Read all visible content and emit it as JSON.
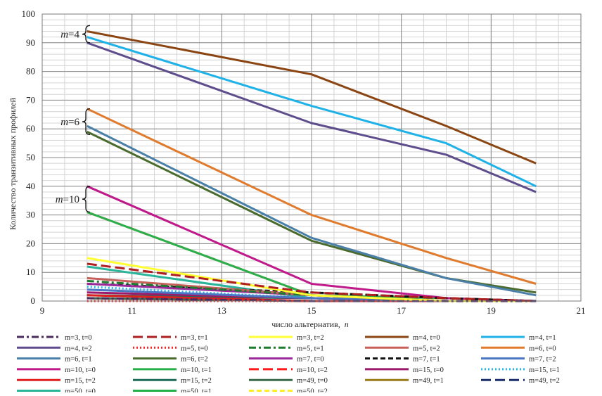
{
  "chart_data": {
    "type": "line",
    "title": "",
    "xlabel": "число альтернатив,",
    "xlabel_var": "n",
    "ylabel": "Количество транзитивных профилей",
    "xlim": [
      9,
      21
    ],
    "ylim": [
      0,
      100
    ],
    "x_ticks": [
      9,
      11,
      13,
      15,
      17,
      19,
      21
    ],
    "y_ticks": [
      0,
      10,
      20,
      30,
      40,
      50,
      60,
      70,
      80,
      90,
      100
    ],
    "grid": true,
    "legend_position": "bottom",
    "x": [
      10,
      15,
      18,
      20
    ],
    "annotations": [
      {
        "text_var": "m",
        "text_value": "=4",
        "y_range": [
          90,
          96
        ]
      },
      {
        "text_var": "m",
        "text_value": "=6",
        "y_range": [
          58,
          67
        ]
      },
      {
        "text_var": "m",
        "text_value": "=10",
        "y_range": [
          31,
          40
        ]
      }
    ],
    "series": [
      {
        "name": "m=3, t=0",
        "color": "#4b2a5e",
        "dash": "dashdot",
        "width": 3,
        "values": [
          1,
          0,
          0,
          0
        ]
      },
      {
        "name": "m=3, t=1",
        "color": "#b01f1f",
        "dash": "longdash",
        "width": 3,
        "values": [
          13,
          3,
          1,
          0
        ]
      },
      {
        "name": "m=3, t=2",
        "color": "#ffff33",
        "dash": "solid",
        "width": 3,
        "values": [
          15,
          2,
          0,
          0
        ]
      },
      {
        "name": "m=4, t=0",
        "color": "#8b4513",
        "dash": "solid",
        "width": 3,
        "values": [
          94,
          79,
          61,
          48
        ]
      },
      {
        "name": "m=4, t=1",
        "color": "#1fb2e8",
        "dash": "solid",
        "width": 3,
        "values": [
          92,
          68,
          55,
          40
        ]
      },
      {
        "name": "m=4, t=2",
        "color": "#5e4d8c",
        "dash": "solid",
        "width": 3,
        "values": [
          90,
          62,
          51,
          38
        ]
      },
      {
        "name": "m=5, t=0",
        "color": "#ff2020",
        "dash": "dot",
        "width": 3,
        "values": [
          0,
          0,
          0,
          0
        ]
      },
      {
        "name": "m=5, t=1",
        "color": "#1e7a2e",
        "dash": "dashdot",
        "width": 3,
        "values": [
          7,
          2,
          0,
          0
        ]
      },
      {
        "name": "m=5, t=2",
        "color": "#c8605a",
        "dash": "solid",
        "width": 3,
        "values": [
          8,
          2,
          0,
          0
        ]
      },
      {
        "name": "m=6, t=0",
        "color": "#e07b2e",
        "dash": "solid",
        "width": 3,
        "values": [
          67,
          30,
          15,
          6
        ]
      },
      {
        "name": "m=6, t=1",
        "color": "#4a7fa8",
        "dash": "solid",
        "width": 3,
        "values": [
          61,
          22,
          8,
          2
        ]
      },
      {
        "name": "m=6, t=2",
        "color": "#4a6b2e",
        "dash": "solid",
        "width": 3,
        "values": [
          59,
          21,
          8,
          3
        ]
      },
      {
        "name": "m=7, t=0",
        "color": "#9b2a9b",
        "dash": "solid",
        "width": 3,
        "values": [
          6,
          2,
          0,
          0
        ]
      },
      {
        "name": "m=7, t=1",
        "color": "#111111",
        "dash": "dash",
        "width": 3,
        "values": [
          6,
          3,
          1,
          0
        ]
      },
      {
        "name": "m=7, t=2",
        "color": "#4a76c4",
        "dash": "solid",
        "width": 3,
        "values": [
          4,
          1,
          0,
          0
        ]
      },
      {
        "name": "m=10, t=0",
        "color": "#c0198a",
        "dash": "solid",
        "width": 3,
        "values": [
          40,
          6,
          1,
          0
        ]
      },
      {
        "name": "m=10, t=1",
        "color": "#2ab04a",
        "dash": "solid",
        "width": 3,
        "values": [
          31,
          2,
          1,
          0
        ]
      },
      {
        "name": "m=10, t=2",
        "color": "#ff1a1a",
        "dash": "longdash",
        "width": 3,
        "values": [
          31,
          2,
          1,
          0
        ]
      },
      {
        "name": "m=15, t=0",
        "color": "#9b1a6b",
        "dash": "solid",
        "width": 3,
        "values": [
          3,
          1,
          0,
          0
        ]
      },
      {
        "name": "m=15, t=1",
        "color": "#27b6ea",
        "dash": "dot",
        "width": 3,
        "values": [
          5,
          1,
          0,
          0
        ]
      },
      {
        "name": "m=15, t=2",
        "color": "#e02020",
        "dash": "solid",
        "width": 3,
        "values": [
          2,
          0,
          0,
          0
        ]
      },
      {
        "name": "m=15, t=2",
        "color": "#1e6b5a",
        "dash": "solid",
        "width": 3,
        "values": [
          2,
          1,
          0,
          0
        ]
      },
      {
        "name": "m=49, t=0",
        "color": "#3a6a4a",
        "dash": "solid",
        "width": 3,
        "values": [
          1,
          0,
          0,
          0
        ]
      },
      {
        "name": "m=49, t=1",
        "color": "#9b7a1a",
        "dash": "solid",
        "width": 3,
        "values": [
          1,
          0,
          0,
          0
        ]
      },
      {
        "name": "m=49, t=2",
        "color": "#1a2e6b",
        "dash": "longdash",
        "width": 3,
        "values": [
          1,
          0,
          0,
          0
        ]
      },
      {
        "name": "m=50, t=0",
        "color": "#2ab49a",
        "dash": "solid",
        "width": 3,
        "values": [
          12,
          1,
          0,
          0
        ]
      },
      {
        "name": "m=50, t=1",
        "color": "#22b04a",
        "dash": "solid",
        "width": 3,
        "values": [
          2,
          1,
          0,
          0
        ]
      },
      {
        "name": "m=50, t=2",
        "color": "#ffee22",
        "dash": "dash",
        "width": 3,
        "values": [
          1,
          0,
          0,
          0
        ]
      }
    ]
  }
}
